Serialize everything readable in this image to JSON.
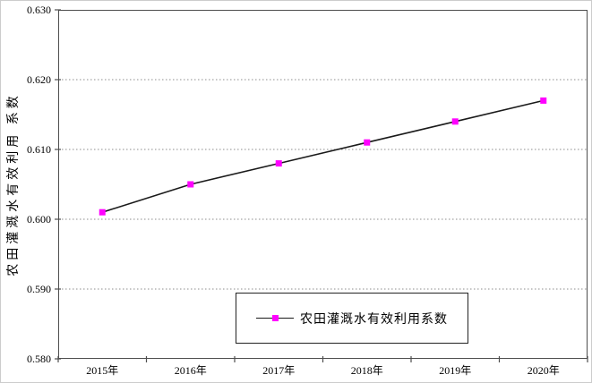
{
  "chart": {
    "y_axis_title": "农田灌溉水有效利用 系数",
    "legend": {
      "label": "农田灌溉水有效利用系数"
    }
  },
  "chart_data": {
    "type": "line",
    "title": "",
    "xlabel": "",
    "ylabel": "农田灌溉水有效利用系数",
    "categories": [
      "2015年",
      "2016年",
      "2017年",
      "2018年",
      "2019年",
      "2020年"
    ],
    "series": [
      {
        "name": "农田灌溉水有效利用系数",
        "values": [
          0.601,
          0.605,
          0.608,
          0.611,
          0.614,
          0.617
        ]
      }
    ],
    "ylim": [
      0.58,
      0.63
    ],
    "yticks": [
      0.58,
      0.59,
      0.6,
      0.61,
      0.62,
      0.63
    ],
    "ytick_decimals": 3,
    "grid": "horizontal-dotted",
    "legend_position": "bottom-center-boxed",
    "colors": {
      "line": "#1a1a1a",
      "marker": "#FF00FF",
      "grid": "#8c8c8c",
      "axis": "#4d4d4d"
    }
  }
}
